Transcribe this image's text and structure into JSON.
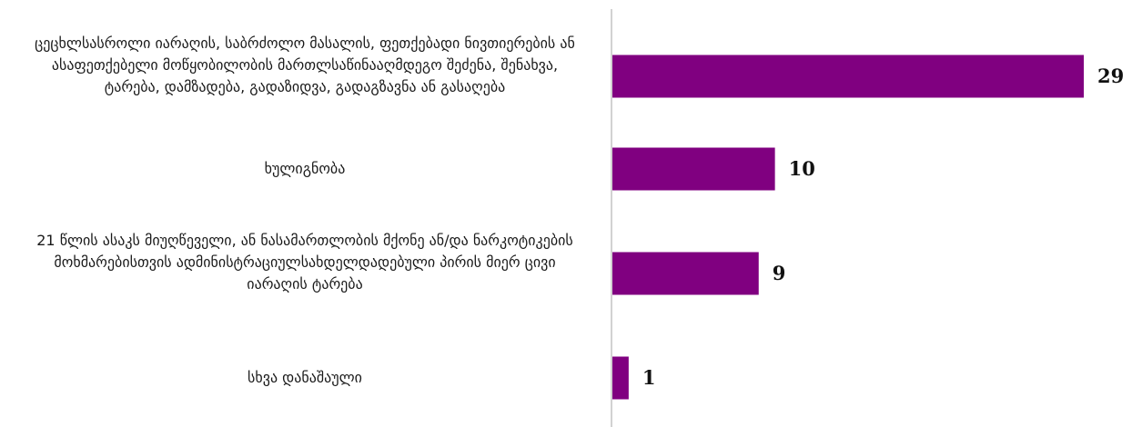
{
  "chart_data": {
    "type": "bar",
    "orientation": "horizontal",
    "title": "",
    "xlabel": "",
    "ylabel": "",
    "grid": false,
    "legend": "none",
    "xlim": [
      0,
      29
    ],
    "bar_color": "#800080",
    "axis_color": "#a6a6a6",
    "categories": [
      "ცეცხლსასროლი იარაღის, საბრძოლო მასალის, ფეთქებადი ნივთიერების ან ასაფეთქებელი მოწყობილობის მართლსაწინააღმდეგო შეძენა, შენახვა, ტარება, დამზადება, გადაზიდვა, გადაგზავნა ან გასაღება",
      "ხულიგნობა",
      "21 წლის ასაკს მიუღწეველი, ან ნასამართლობის მქონე ან/და ნარკოტიკების მოხმარებისთვის ადმინისტრაციულსახდელდადებული პირის მიერ ცივი იარაღის ტარება",
      "სხვა დანაშაული"
    ],
    "values": [
      29,
      10,
      9,
      1
    ]
  }
}
